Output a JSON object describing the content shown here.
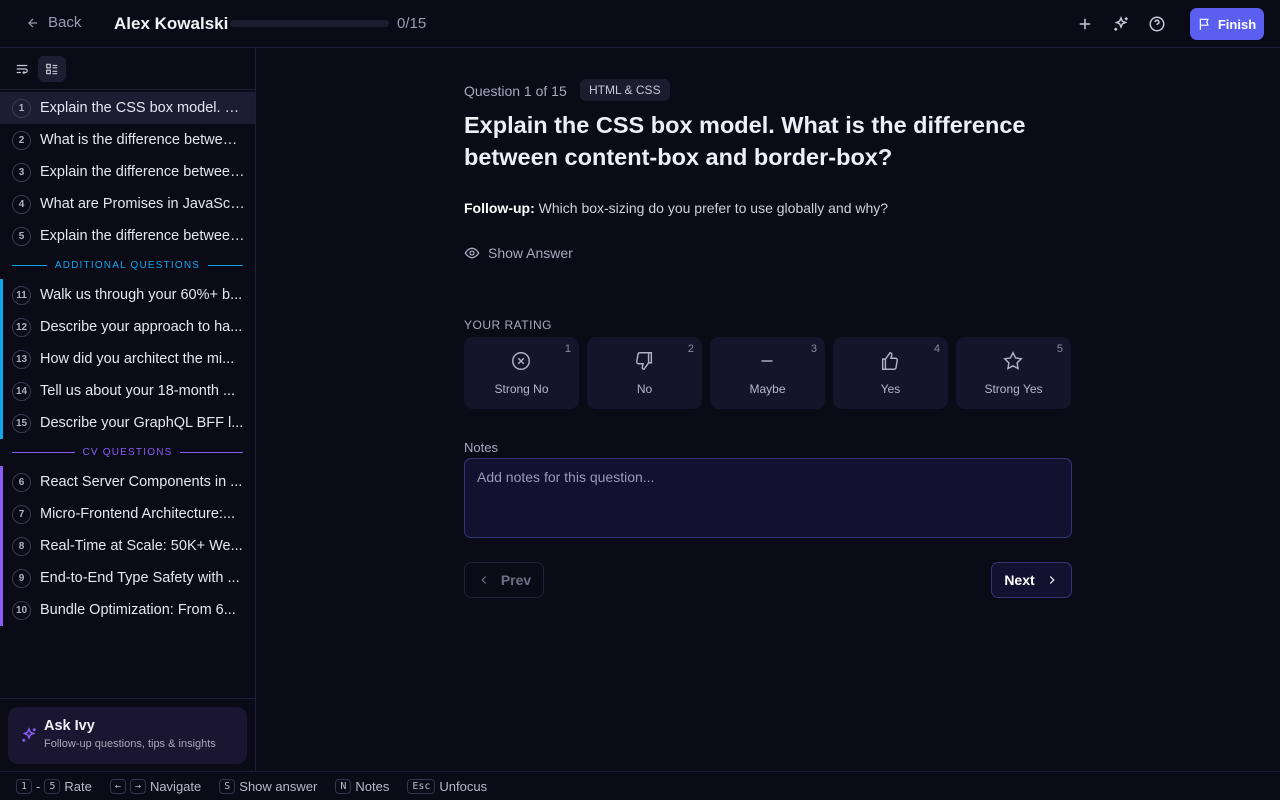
{
  "header": {
    "back_label": "Back",
    "candidate_name": "Alex Kowalski",
    "progress_text": "0/15",
    "progress_fraction": 0,
    "finish_label": "Finish",
    "icons": [
      "plus-icon",
      "sparkles-icon",
      "help-icon",
      "flag-icon"
    ]
  },
  "sidebar": {
    "items": [
      {
        "num": "1",
        "label": "Explain the CSS box model. What is the difference between content-box and border-box?",
        "selected": true
      },
      {
        "num": "2",
        "label": "What is the difference between..."
      },
      {
        "num": "3",
        "label": "Explain the difference between..."
      },
      {
        "num": "4",
        "label": "What are Promises in JavaScript..."
      },
      {
        "num": "5",
        "label": "Explain the difference between..."
      }
    ],
    "additional_header": "ADDITIONAL QUESTIONS",
    "additional_color": "#0ea5e9",
    "additional_items": [
      {
        "num": "11",
        "label": "Walk us through your 60%+ b..."
      },
      {
        "num": "12",
        "label": "Describe your approach to ha..."
      },
      {
        "num": "13",
        "label": "How did you architect the mi..."
      },
      {
        "num": "14",
        "label": "Tell us about your 18-month ..."
      },
      {
        "num": "15",
        "label": "Describe your GraphQL BFF l..."
      }
    ],
    "cv_header": "CV QUESTIONS",
    "cv_color": "#8b5cf6",
    "cv_items": [
      {
        "num": "6",
        "label": "React Server Components in ..."
      },
      {
        "num": "7",
        "label": "Micro-Frontend Architecture:..."
      },
      {
        "num": "8",
        "label": "Real-Time at Scale: 50K+ We..."
      },
      {
        "num": "9",
        "label": "End-to-End Type Safety with ..."
      },
      {
        "num": "10",
        "label": "Bundle Optimization: From 6..."
      }
    ],
    "ask_ivy": {
      "title": "Ask Ivy",
      "subtitle": "Follow-up questions, tips & insights"
    }
  },
  "main": {
    "question_meta": "Question 1 of 15",
    "category": "HTML & CSS",
    "title": "Explain the CSS box model. What is the difference between content-box and border-box?",
    "followup_label": "Follow-up:",
    "followup_text": "Which box-sizing do you prefer to use globally and why?",
    "show_answer": "Show Answer",
    "rating_label": "YOUR RATING",
    "ratings": [
      {
        "key": "1",
        "label": "Strong No",
        "icon": "x-circle-icon"
      },
      {
        "key": "2",
        "label": "No",
        "icon": "thumbs-down-icon"
      },
      {
        "key": "3",
        "label": "Maybe",
        "icon": "minus-icon"
      },
      {
        "key": "4",
        "label": "Yes",
        "icon": "thumbs-up-icon"
      },
      {
        "key": "5",
        "label": "Strong Yes",
        "icon": "star-icon"
      }
    ],
    "notes_label": "Notes",
    "notes_placeholder": "Add notes for this question...",
    "notes_value": "",
    "prev_label": "Prev",
    "next_label": "Next"
  },
  "footer": {
    "rate_keys": [
      "1",
      "5"
    ],
    "rate_label": "Rate",
    "nav_keys": [
      "←",
      "→"
    ],
    "nav_label": "Navigate",
    "show_key": "S",
    "show_label": "Show answer",
    "notes_key": "N",
    "notes_label": "Notes",
    "esc_key": "Esc",
    "esc_label": "Unfocus"
  }
}
